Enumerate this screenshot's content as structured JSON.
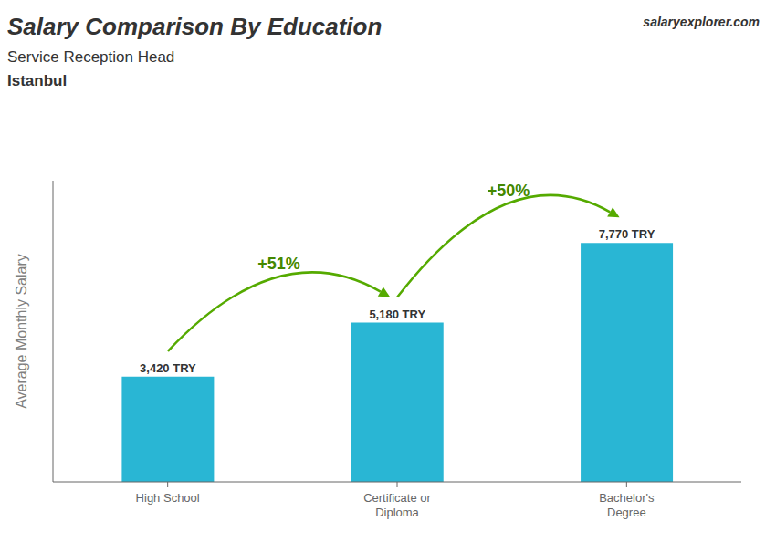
{
  "chart_data": {
    "type": "bar",
    "title": "Salary Comparison By Education",
    "subtitle": "Service Reception Head",
    "annotations": [
      "Istanbul",
      "+51%",
      "+50%",
      "salaryexplorer.com"
    ],
    "ylabel": "Average Monthly Salary",
    "categories": [
      "High School",
      "Certificate or\nDiploma",
      "Bachelor's\nDegree"
    ],
    "values": [
      3420,
      5180,
      7770
    ],
    "value_labels": [
      "3,420 TRY",
      "5,180 TRY",
      "7,770 TRY"
    ],
    "color": "#29b6d4",
    "ylim": [
      0,
      9800
    ],
    "data_labels": true,
    "tick_labels": "x"
  }
}
